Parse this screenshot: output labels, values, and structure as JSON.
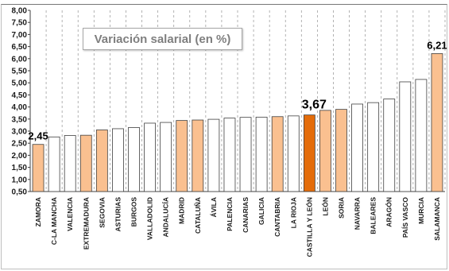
{
  "chart_data": {
    "type": "bar",
    "title": "Variación salarial (en %)",
    "xlabel": "",
    "ylabel": "",
    "ylim": [
      0.5,
      8.0
    ],
    "yticks": [
      "0,50",
      "1,00",
      "1,50",
      "2,00",
      "2,50",
      "3,00",
      "3,50",
      "4,00",
      "4,50",
      "5,00",
      "5,50",
      "6,00",
      "6,50",
      "7,00",
      "7,50",
      "8,00"
    ],
    "grid": "vertical-dashed",
    "legend": "none",
    "categories": [
      "ZAMORA",
      "C-LA MANCHA",
      "VALENCIA",
      "EXTREMADURA",
      "SEGOVIA",
      "ASTURIAS",
      "BURGOS",
      "VALLADOLID",
      "ANDALUCÍA",
      "MADRID",
      "CATALUÑA",
      "ÁVILA",
      "PALENCIA",
      "CANARIAS",
      "GALICIA",
      "CANTABRIA",
      "LA RIOJA",
      "CASTILLA Y LEÓN",
      "LEÓN",
      "SORIA",
      "NAVARRA",
      "BALEARES",
      "ARAGÓN",
      "PAÍS VASCO",
      "MURCIA",
      "SALAMANCA"
    ],
    "values": [
      2.45,
      2.76,
      2.82,
      2.83,
      3.05,
      3.1,
      3.15,
      3.33,
      3.36,
      3.44,
      3.46,
      3.49,
      3.54,
      3.57,
      3.58,
      3.6,
      3.63,
      3.67,
      3.86,
      3.9,
      4.12,
      4.18,
      4.33,
      5.04,
      5.14,
      6.21
    ],
    "highlight": [
      "light",
      "none",
      "none",
      "light",
      "light",
      "none",
      "none",
      "none",
      "none",
      "light",
      "light",
      "none",
      "none",
      "none",
      "none",
      "light",
      "none",
      "dark",
      "light",
      "light",
      "none",
      "none",
      "none",
      "none",
      "none",
      "light"
    ],
    "data_labels": [
      {
        "category": "ZAMORA",
        "text": "2,45"
      },
      {
        "category": "CASTILLA Y LEÓN",
        "text": "3,67"
      },
      {
        "category": "SALAMANCA",
        "text": "6,21"
      }
    ],
    "colors": {
      "none": "#ffffff",
      "light": "#fac090",
      "dark": "#e46c0a",
      "bar_stroke": "#404040",
      "grid": "#a0a0a0"
    }
  }
}
